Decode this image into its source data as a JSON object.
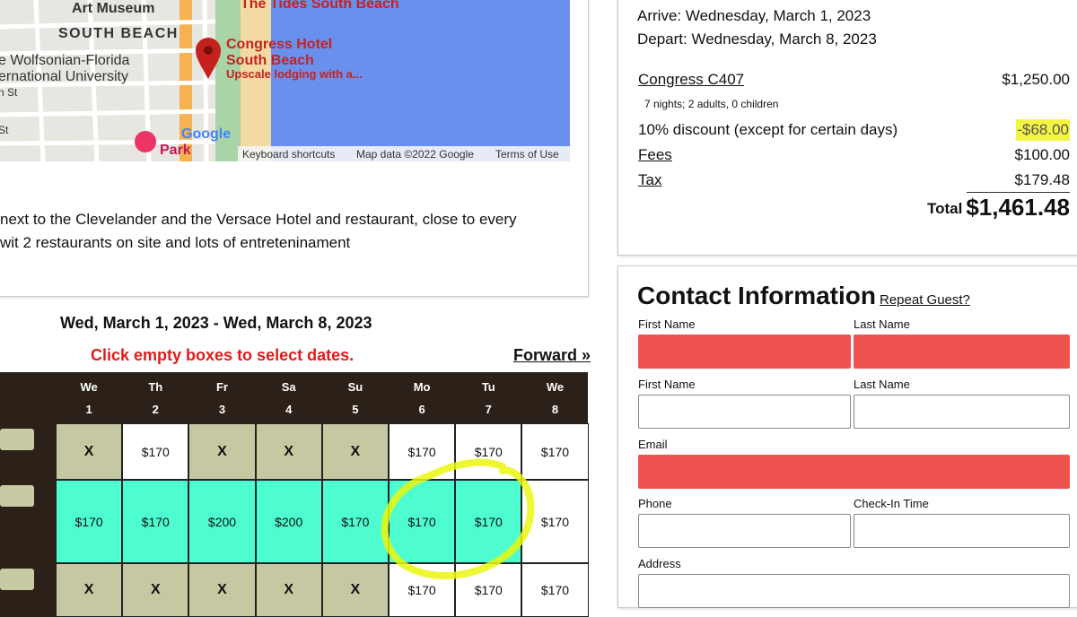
{
  "map": {
    "labels": {
      "museum": "Art Museum",
      "tides": "The Tides South Beach",
      "district": "SOUTH BEACH",
      "hotel_line1": "Congress Hotel",
      "hotel_line2": "South Beach",
      "hotel_desc": "Upscale lodging with a...",
      "wolf1": "e Wolfsonian-Florida",
      "wolf2": "ernational University",
      "street1": "n St",
      "street2": "St",
      "park": "Park",
      "google": "Google"
    },
    "footer": [
      "Keyboard shortcuts",
      "Map data ©2022 Google",
      "Terms of Use"
    ]
  },
  "description": [
    "next to the Clevelander and the Versace Hotel and restaurant, close to every",
    " wit 2 restaurants on site and lots of entreteninament"
  ],
  "calendar": {
    "title": "Wed, March 1, 2023 - Wed, March 8, 2023",
    "hint": "Click empty boxes to select dates.",
    "forward": "Forward »",
    "days": [
      {
        "name": "We",
        "num": "1"
      },
      {
        "name": "Th",
        "num": "2"
      },
      {
        "name": "Fr",
        "num": "3"
      },
      {
        "name": "Sa",
        "num": "4"
      },
      {
        "name": "Su",
        "num": "5"
      },
      {
        "name": "Mo",
        "num": "6"
      },
      {
        "name": "Tu",
        "num": "7"
      },
      {
        "name": "We",
        "num": "8"
      }
    ],
    "rows": [
      [
        "X",
        "$170",
        "X",
        "X",
        "X",
        "$170",
        "$170",
        "$170"
      ],
      [
        "$170",
        "$170",
        "$200",
        "$200",
        "$170",
        "$170",
        "$170",
        "$170"
      ],
      [
        "X",
        "X",
        "X",
        "X",
        "X",
        "$170",
        "$170",
        "$170"
      ]
    ]
  },
  "summary": {
    "arrive": "Arrive: Wednesday, March 1, 2023",
    "depart": "Depart: Wednesday, March 8, 2023",
    "room": "Congress C407",
    "room_price": "$1,250.00",
    "room_details": "7 nights; 2 adults, 0 children",
    "discount_label": "10% discount (except for certain days)",
    "discount": "-$68.00",
    "fees_label": "Fees",
    "fees": "$100.00",
    "tax_label": "Tax",
    "tax": "$179.48",
    "total_label": "Total",
    "total": "$1,461.48"
  },
  "contact": {
    "title": "Contact Information",
    "repeat": "Repeat Guest?",
    "fields": [
      "First Name",
      "Last Name",
      "First Name",
      "Last Name",
      "Email",
      "Phone",
      "Check-In Time",
      "Address"
    ]
  }
}
